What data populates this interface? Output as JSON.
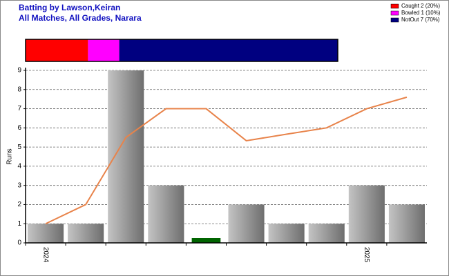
{
  "chart_data": {
    "type": "bar",
    "title": "Batting by Lawson,Keiran",
    "subtitle": "All Matches, All Grades, Narara",
    "y_label": "Runs",
    "categories": [
      "2024",
      null,
      null,
      null,
      null,
      null,
      null,
      null,
      "2025",
      null
    ],
    "series": [
      {
        "name": "Runs",
        "type": "bar",
        "color": "#999999",
        "values": [
          1,
          1,
          9,
          3,
          0,
          2,
          1,
          1,
          3,
          2
        ]
      },
      {
        "name": "Average",
        "type": "line",
        "color": "#e8834a",
        "values": [
          1,
          2,
          5.5,
          7,
          7,
          5.33,
          5.67,
          6,
          7,
          7.6
        ]
      }
    ],
    "zero_color": "#006400",
    "ylim": [
      0,
      9
    ],
    "yticks": [
      0,
      1,
      2,
      3,
      4,
      5,
      6,
      7,
      8,
      9
    ],
    "grid": true,
    "dismissals": [
      {
        "name": "Caught 2 (20%)",
        "color": "#ff0000",
        "value": 20
      },
      {
        "name": "Bowled 1 (10%)",
        "color": "#ff00ff",
        "value": 10
      },
      {
        "name": "NotOut 7 (70%)",
        "color": "#000080",
        "value": 70
      }
    ],
    "legend": "top-right"
  }
}
